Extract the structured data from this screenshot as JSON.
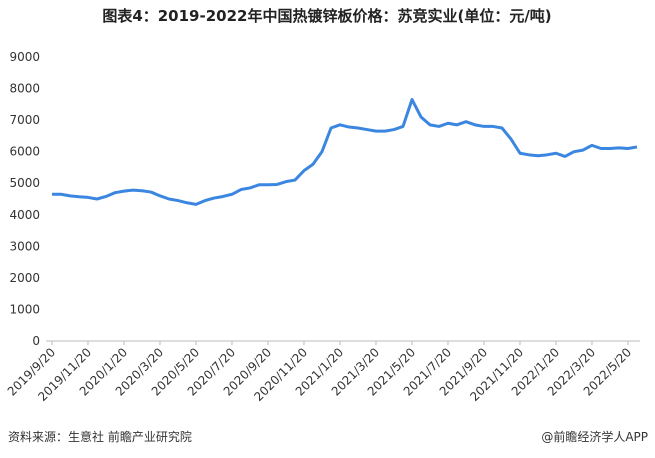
{
  "chart_data": {
    "type": "line",
    "title": "图表4：2019-2022年中国热镀锌板价格：苏竞实业(单位：元/吨)",
    "source": "资料来源：生意社 前瞻产业研究院",
    "brand": "@前瞻经济学人APP",
    "categories": [
      "2019/9/20",
      null,
      null,
      null,
      "2019/11/20",
      null,
      null,
      null,
      "2020/1/20",
      null,
      null,
      null,
      "2020/3/20",
      null,
      null,
      null,
      "2020/5/20",
      null,
      null,
      null,
      "2020/7/20",
      null,
      null,
      null,
      "2020/9/20",
      null,
      null,
      null,
      "2020/11/20",
      null,
      null,
      null,
      "2021/1/20",
      null,
      null,
      null,
      "2021/3/20",
      null,
      null,
      null,
      "2021/5/20",
      null,
      null,
      null,
      "2021/7/20",
      null,
      null,
      null,
      "2021/9/20",
      null,
      null,
      null,
      "2021/11/20",
      null,
      null,
      null,
      "2022/1/20",
      null,
      null,
      null,
      "2022/3/20",
      null,
      null,
      null,
      "2022/5/20",
      null
    ],
    "series": [
      {
        "color": "#3a86e0",
        "values": [
          4650,
          4650,
          4600,
          4570,
          4550,
          4500,
          4580,
          4700,
          4750,
          4780,
          4760,
          4720,
          4600,
          4500,
          4450,
          4380,
          4330,
          4450,
          4530,
          4580,
          4650,
          4800,
          4850,
          4950,
          4950,
          4960,
          5050,
          5100,
          5400,
          5600,
          6000,
          6750,
          6850,
          6780,
          6750,
          6700,
          6650,
          6650,
          6700,
          6800,
          7650,
          7100,
          6850,
          6800,
          6900,
          6850,
          6950,
          6850,
          6800,
          6800,
          6750,
          6400,
          5950,
          5900,
          5870,
          5900,
          5950,
          5850,
          6000,
          6050,
          6200,
          6100,
          6100,
          6120,
          6100,
          6150
        ]
      }
    ],
    "ylim": [
      0,
      9000
    ],
    "yticks": [
      0,
      1000,
      2000,
      3000,
      4000,
      5000,
      6000,
      7000,
      8000,
      9000
    ],
    "grid": false
  }
}
